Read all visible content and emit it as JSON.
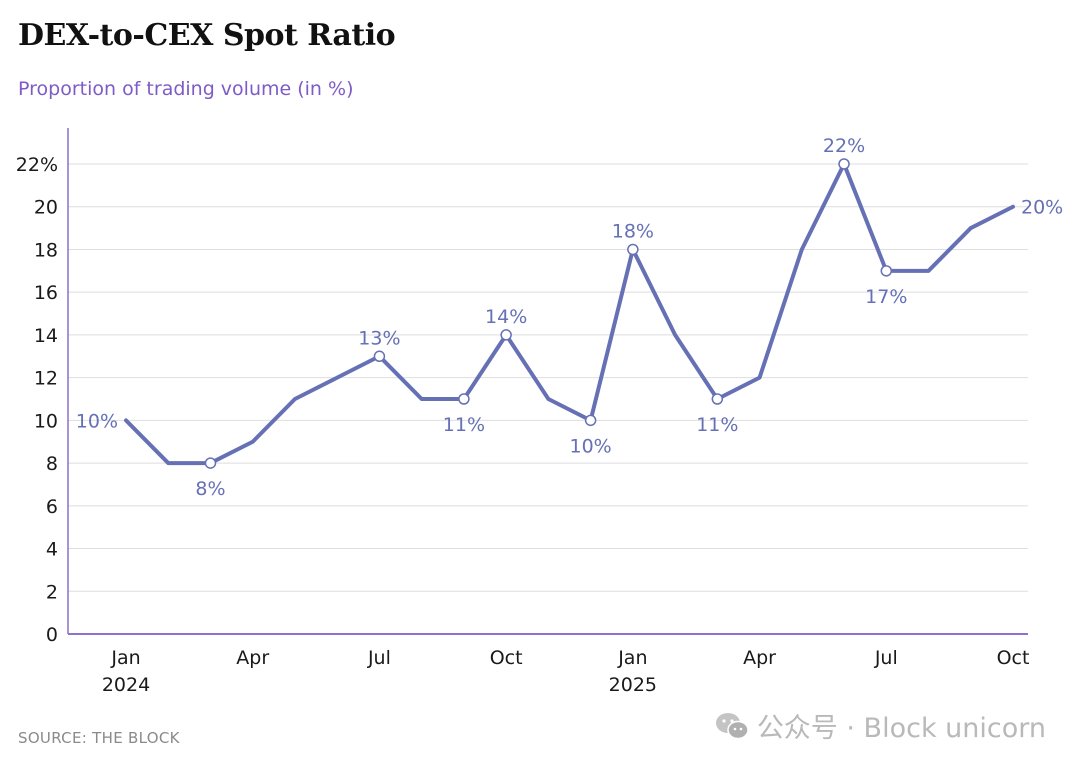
{
  "header": {
    "title": "DEX-to-CEX Spot Ratio",
    "subtitle": "Proportion of trading volume (in %)"
  },
  "footer": {
    "source": "SOURCE: THE BLOCK",
    "watermark": "公众号 · Block unicorn"
  },
  "colors": {
    "line": "#6670b5",
    "subtitle": "#7e5bc6",
    "axis": "#8f6fcf",
    "grid": "#dedede"
  },
  "chart_data": {
    "type": "line",
    "title": "DEX-to-CEX Spot Ratio",
    "subtitle": "Proportion of trading volume (in %)",
    "x": [
      "2024-01",
      "2024-02",
      "2024-03",
      "2024-04",
      "2024-05",
      "2024-06",
      "2024-07",
      "2024-08",
      "2024-09",
      "2024-10",
      "2024-11",
      "2024-12",
      "2025-01",
      "2025-02",
      "2025-03",
      "2025-04",
      "2025-05",
      "2025-06",
      "2025-07",
      "2025-08",
      "2025-09",
      "2025-10"
    ],
    "series": [
      {
        "values": [
          10,
          8,
          8,
          9,
          11,
          12,
          13,
          11,
          11,
          14,
          11,
          10,
          18,
          14,
          11,
          12,
          18,
          22,
          17,
          17,
          19,
          20
        ]
      }
    ],
    "ylim": [
      0,
      22
    ],
    "yticks": [
      0,
      2,
      4,
      6,
      8,
      10,
      12,
      14,
      16,
      18,
      20,
      22
    ],
    "ytick_labels": [
      "0",
      "2",
      "4",
      "6",
      "8",
      "10",
      "12",
      "14",
      "16",
      "18",
      "20",
      "22%"
    ],
    "xticks": [
      {
        "x": "2024-01",
        "label": "Jan",
        "sublabel": "2024"
      },
      {
        "x": "2024-04",
        "label": "Apr",
        "sublabel": ""
      },
      {
        "x": "2024-07",
        "label": "Jul",
        "sublabel": ""
      },
      {
        "x": "2024-10",
        "label": "Oct",
        "sublabel": ""
      },
      {
        "x": "2025-01",
        "label": "Jan",
        "sublabel": "2025"
      },
      {
        "x": "2025-04",
        "label": "Apr",
        "sublabel": ""
      },
      {
        "x": "2025-07",
        "label": "Jul",
        "sublabel": ""
      },
      {
        "x": "2025-10",
        "label": "Oct",
        "sublabel": ""
      }
    ],
    "annotations": [
      {
        "x": "2024-01",
        "text": "10%",
        "position": "left",
        "marker": false
      },
      {
        "x": "2024-03",
        "text": "8%",
        "position": "below",
        "marker": true
      },
      {
        "x": "2024-07",
        "text": "13%",
        "position": "above",
        "marker": true
      },
      {
        "x": "2024-09",
        "text": "11%",
        "position": "below",
        "marker": true
      },
      {
        "x": "2024-10",
        "text": "14%",
        "position": "above",
        "marker": true
      },
      {
        "x": "2024-12",
        "text": "10%",
        "position": "below",
        "marker": true
      },
      {
        "x": "2025-01",
        "text": "18%",
        "position": "above",
        "marker": true
      },
      {
        "x": "2025-03",
        "text": "11%",
        "position": "below",
        "marker": true
      },
      {
        "x": "2025-06",
        "text": "22%",
        "position": "above",
        "marker": true
      },
      {
        "x": "2025-07",
        "text": "17%",
        "position": "below",
        "marker": true
      },
      {
        "x": "2025-10",
        "text": "20%",
        "position": "right",
        "marker": false
      }
    ],
    "grid": true,
    "legend": "none"
  }
}
